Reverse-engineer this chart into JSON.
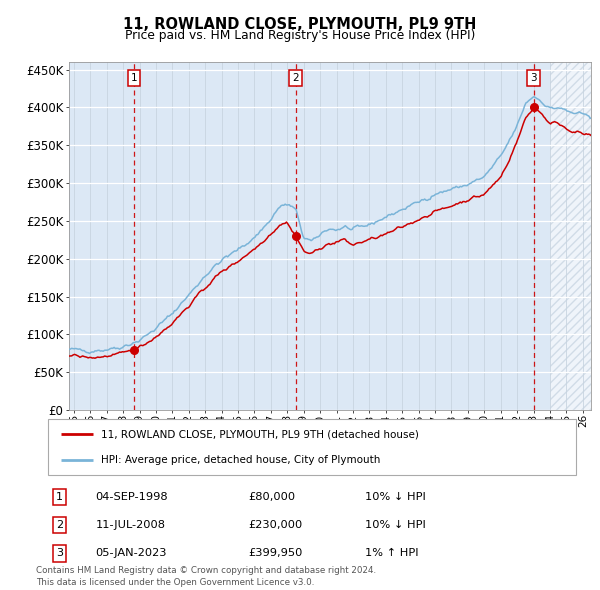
{
  "title": "11, ROWLAND CLOSE, PLYMOUTH, PL9 9TH",
  "subtitle": "Price paid vs. HM Land Registry's House Price Index (HPI)",
  "hpi_label": "HPI: Average price, detached house, City of Plymouth",
  "price_label": "11, ROWLAND CLOSE, PLYMOUTH, PL9 9TH (detached house)",
  "footnote": "Contains HM Land Registry data © Crown copyright and database right 2024.\nThis data is licensed under the Open Government Licence v3.0.",
  "sale_times": [
    1998.667,
    2008.5,
    2023.0
  ],
  "sale_prices": [
    80000,
    230000,
    399950
  ],
  "sale_labels": [
    "1",
    "2",
    "3"
  ],
  "sale_info": [
    {
      "label": "1",
      "date": "04-SEP-1998",
      "price": "£80,000",
      "hpi": "10% ↓ HPI"
    },
    {
      "label": "2",
      "date": "11-JUL-2008",
      "price": "£230,000",
      "hpi": "10% ↓ HPI"
    },
    {
      "label": "3",
      "date": "05-JAN-2023",
      "price": "£399,950",
      "hpi": "1% ↑ HPI"
    }
  ],
  "hpi_color": "#7ab4d8",
  "price_color": "#cc0000",
  "bg_color": "#dce8f5",
  "hatch_color": "#b8c8d8",
  "ylim": [
    0,
    460000
  ],
  "yticks": [
    0,
    50000,
    100000,
    150000,
    200000,
    250000,
    300000,
    350000,
    400000,
    450000
  ],
  "xlim_start": 1994.7,
  "xlim_end": 2026.5,
  "future_start": 2024.0,
  "xtick_years": [
    1995,
    1996,
    1997,
    1998,
    1999,
    2000,
    2001,
    2002,
    2003,
    2004,
    2005,
    2006,
    2007,
    2008,
    2009,
    2010,
    2011,
    2012,
    2013,
    2014,
    2015,
    2016,
    2017,
    2018,
    2019,
    2020,
    2021,
    2022,
    2023,
    2024,
    2025,
    2026
  ]
}
